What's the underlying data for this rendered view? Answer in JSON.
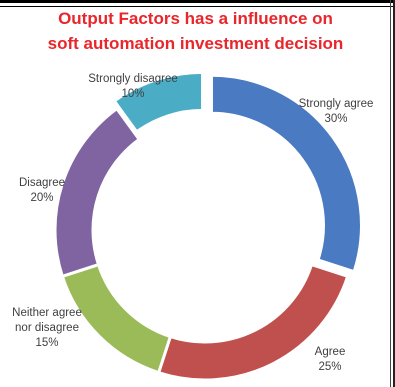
{
  "chart_data": {
    "type": "pie",
    "variant": "doughnut",
    "title_line1": "Output Factors has a influence on",
    "title_line2": "soft automation investment decision",
    "slices": [
      {
        "label_lines": [
          "Strongly agree",
          "30%"
        ],
        "value": 30,
        "color": "#4a7ac2",
        "exploded": true
      },
      {
        "label_lines": [
          "Agree",
          "25%"
        ],
        "value": 25,
        "color": "#c0504d",
        "exploded": false
      },
      {
        "label_lines": [
          "Neither agree",
          "nor disagree",
          "15%"
        ],
        "value": 15,
        "color": "#9bbb59",
        "exploded": false
      },
      {
        "label_lines": [
          "Disagree",
          "20%"
        ],
        "value": 20,
        "color": "#8064a2",
        "exploded": false
      },
      {
        "label_lines": [
          "Strongly disagree",
          "10%"
        ],
        "value": 10,
        "color": "#4bacc6",
        "exploded": true
      }
    ],
    "legend": "none"
  }
}
